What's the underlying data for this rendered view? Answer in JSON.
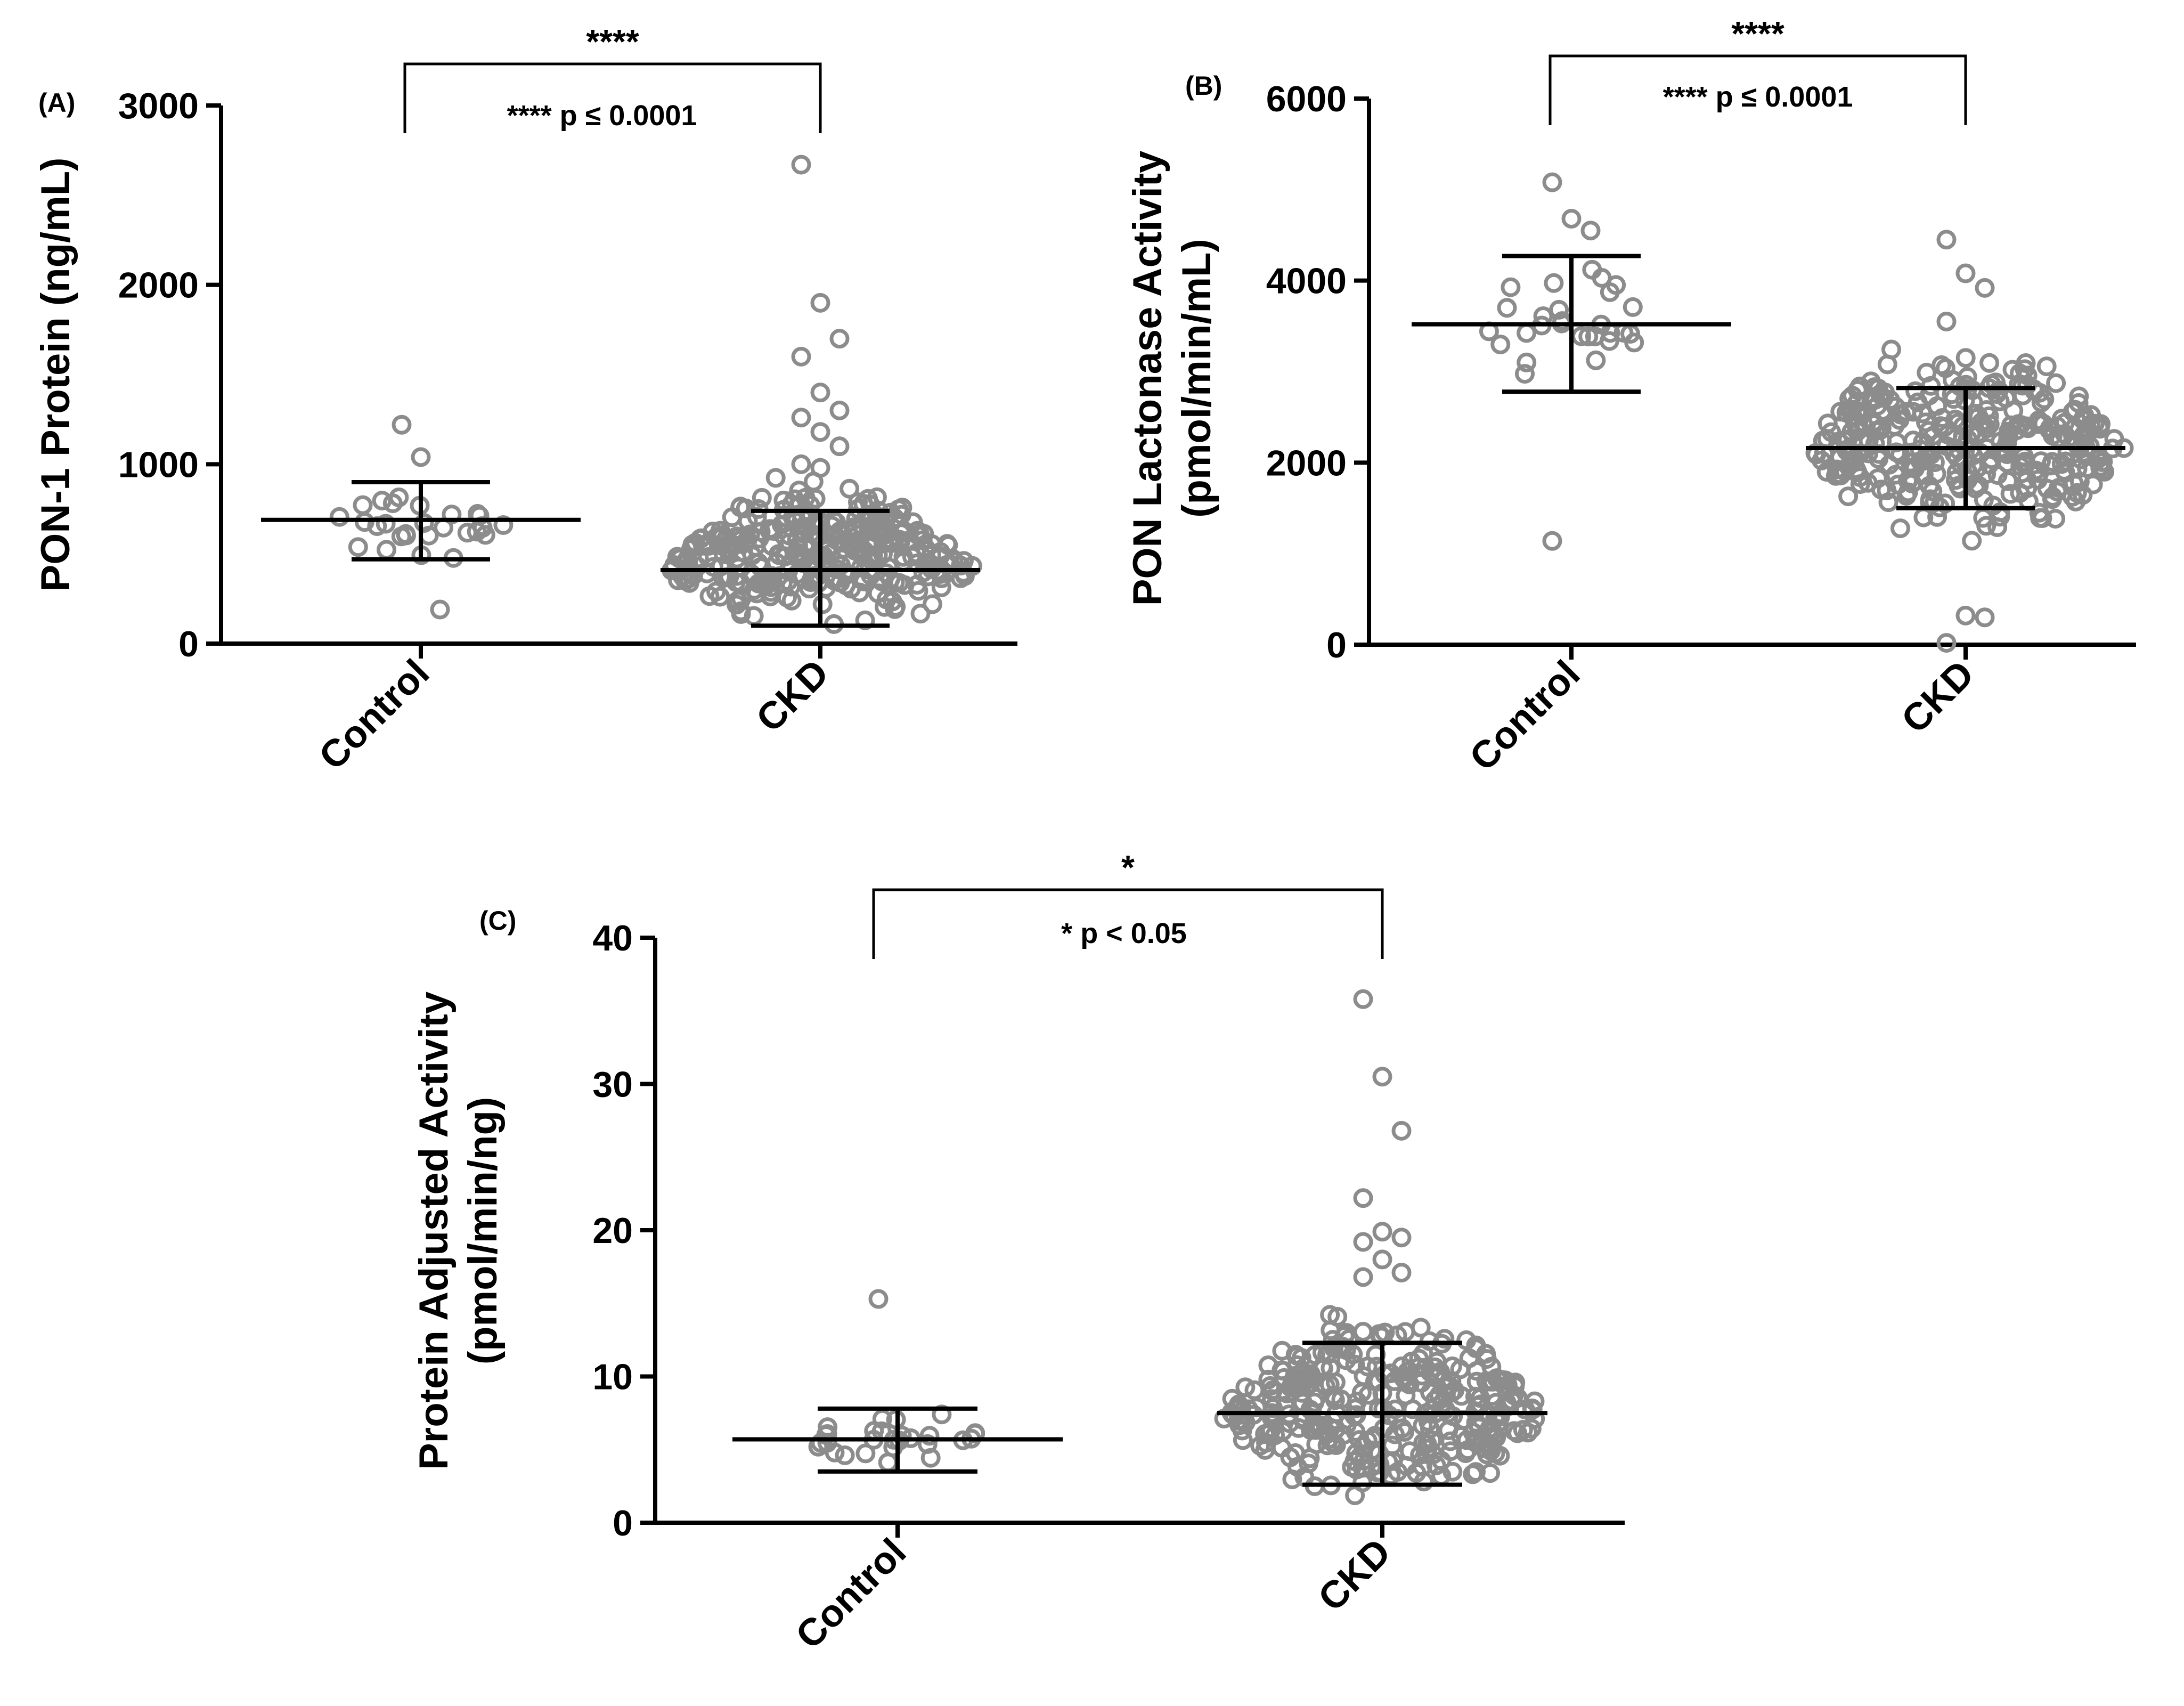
{
  "chart_data": [
    {
      "id": "A",
      "type": "scatter",
      "panel_label": "(A)",
      "ylabel": "PON-1 Protein (ng/mL)",
      "ylabel_lines": [
        "PON-1 Protein (ng/mL)"
      ],
      "ylim": [
        0,
        3000
      ],
      "yticks": [
        0,
        1000,
        2000,
        3000
      ],
      "categories": [
        "Control",
        "CKD"
      ],
      "significance": "****",
      "p_text": "**** p ≤ 0.0001",
      "groups": [
        {
          "name": "Control",
          "mean": 690,
          "sd_low": 470,
          "sd_high": 900,
          "outliers": [
            1220,
            1040,
            190
          ],
          "dense": {
            "min": 300,
            "max": 980,
            "n": 28
          }
        },
        {
          "name": "CKD",
          "mean": 410,
          "sd_low": 100,
          "sd_high": 740,
          "outliers": [
            2670,
            1900,
            1700,
            1600,
            1400,
            1300,
            1260,
            1180,
            1100,
            1000,
            980
          ],
          "dense": {
            "min": 60,
            "max": 960,
            "n": 330
          }
        }
      ]
    },
    {
      "id": "B",
      "type": "scatter",
      "panel_label": "(B)",
      "ylabel": "PON Lactonase Activity (pmol/min/mL)",
      "ylabel_lines": [
        "PON Lactonase Activity",
        "(pmol/min/mL)"
      ],
      "ylim": [
        0,
        6000
      ],
      "yticks": [
        0,
        2000,
        4000,
        6000
      ],
      "categories": [
        "Control",
        "CKD"
      ],
      "significance": "****",
      "p_text": "**** p ≤ 0.0001",
      "groups": [
        {
          "name": "Control",
          "mean": 3520,
          "sd_low": 2780,
          "sd_high": 4270,
          "outliers": [
            5080,
            4680,
            4550,
            1140
          ],
          "dense": {
            "min": 2700,
            "max": 4400,
            "n": 28
          }
        },
        {
          "name": "CKD",
          "mean": 2160,
          "sd_low": 1500,
          "sd_high": 2820,
          "outliers": [
            4450,
            4080,
            3920,
            3550,
            320,
            300,
            20
          ],
          "dense": {
            "min": 900,
            "max": 3450,
            "n": 330
          }
        }
      ]
    },
    {
      "id": "C",
      "type": "scatter",
      "panel_label": "(C)",
      "ylabel": "Protein Adjusted Activity (pmol/min/ng)",
      "ylabel_lines": [
        "Protein Adjusted Activity",
        "(pmol/min/ng)"
      ],
      "ylim": [
        0,
        40
      ],
      "yticks": [
        0,
        10,
        20,
        30,
        40
      ],
      "categories": [
        "Control",
        "CKD"
      ],
      "significance": "*",
      "p_text": "* p < 0.05",
      "groups": [
        {
          "name": "Control",
          "mean": 5.7,
          "sd_low": 3.5,
          "sd_high": 7.8,
          "outliers": [
            15.3
          ],
          "dense": {
            "min": 3.0,
            "max": 8.2,
            "n": 28
          }
        },
        {
          "name": "CKD",
          "mean": 7.5,
          "sd_low": 2.6,
          "sd_high": 12.3,
          "outliers": [
            35.8,
            30.5,
            26.8,
            22.2,
            19.9,
            19.5,
            19.2,
            18.0,
            17.1,
            16.8
          ],
          "dense": {
            "min": 0.5,
            "max": 15.5,
            "n": 330
          }
        }
      ]
    }
  ]
}
